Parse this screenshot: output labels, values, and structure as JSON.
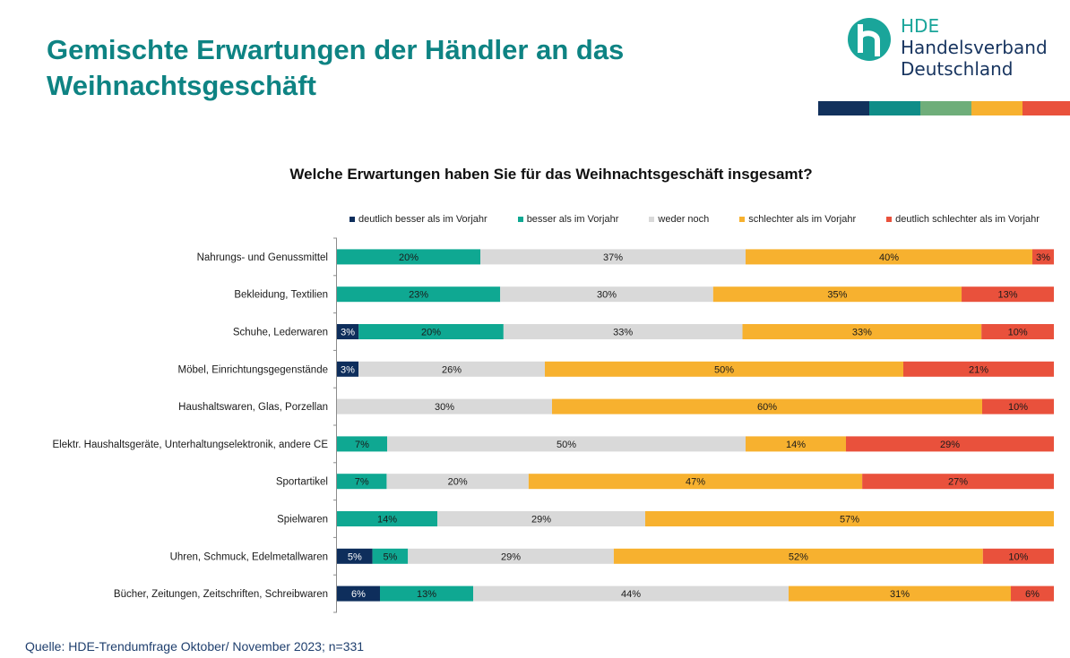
{
  "header": {
    "title": "Gemischte Erwartungen der Händler an das Weihnachtsgeschäft"
  },
  "logo": {
    "abbr": "HDE",
    "line1": "Handelsverband",
    "line2": "Deutschland",
    "mark_icon": "hde-h-logo-icon",
    "strip_colors": [
      "#12315c",
      "#108d88",
      "#6fae7a",
      "#f7b12f",
      "#e9513c"
    ]
  },
  "chart_data": {
    "type": "bar",
    "orientation": "horizontal",
    "stacked": true,
    "title": "Welche Erwartungen haben Sie für das Weihnachtsgeschäft insgesamt?",
    "xlabel": "",
    "ylabel": "",
    "unit": "%",
    "legend_position": "top",
    "grid": false,
    "categories": [
      "Nahrungs- und Genussmittel",
      "Bekleidung, Textilien",
      "Schuhe, Lederwaren",
      "Möbel, Einrichtungsgegenstände",
      "Haushaltswaren, Glas, Porzellan",
      "Elektr. Haushaltsgeräte, Unterhaltungselektronik, andere CE",
      "Sportartikel",
      "Spielwaren",
      "Uhren, Schmuck, Edelmetallwaren",
      "Bücher, Zeitungen, Zeitschriften, Schreibwaren"
    ],
    "series": [
      {
        "name": "deutlich besser als im Vorjahr",
        "color": "#0e2e5c",
        "label_color": "#ffffff",
        "values": [
          0,
          0,
          3,
          3,
          0,
          0,
          0,
          0,
          5,
          6
        ]
      },
      {
        "name": "besser als im Vorjahr",
        "color": "#0fa892",
        "label_color": "#1a1a1a",
        "values": [
          20,
          23,
          20,
          0,
          0,
          7,
          7,
          14,
          5,
          13
        ]
      },
      {
        "name": "weder noch",
        "color": "#d9d9d9",
        "label_color": "#1a1a1a",
        "values": [
          37,
          30,
          33,
          26,
          30,
          50,
          20,
          29,
          29,
          44
        ]
      },
      {
        "name": "schlechter als im Vorjahr",
        "color": "#f7b12f",
        "label_color": "#1a1a1a",
        "values": [
          40,
          35,
          33,
          50,
          60,
          14,
          47,
          57,
          52,
          31
        ]
      },
      {
        "name": "deutlich schlechter als im Vorjahr",
        "color": "#e9513c",
        "label_color": "#1a1a1a",
        "values": [
          3,
          13,
          10,
          21,
          10,
          29,
          27,
          0,
          10,
          6
        ]
      }
    ]
  },
  "footer": {
    "source": "Quelle: HDE-Trendumfrage Oktober/ November 2023; n=331"
  }
}
